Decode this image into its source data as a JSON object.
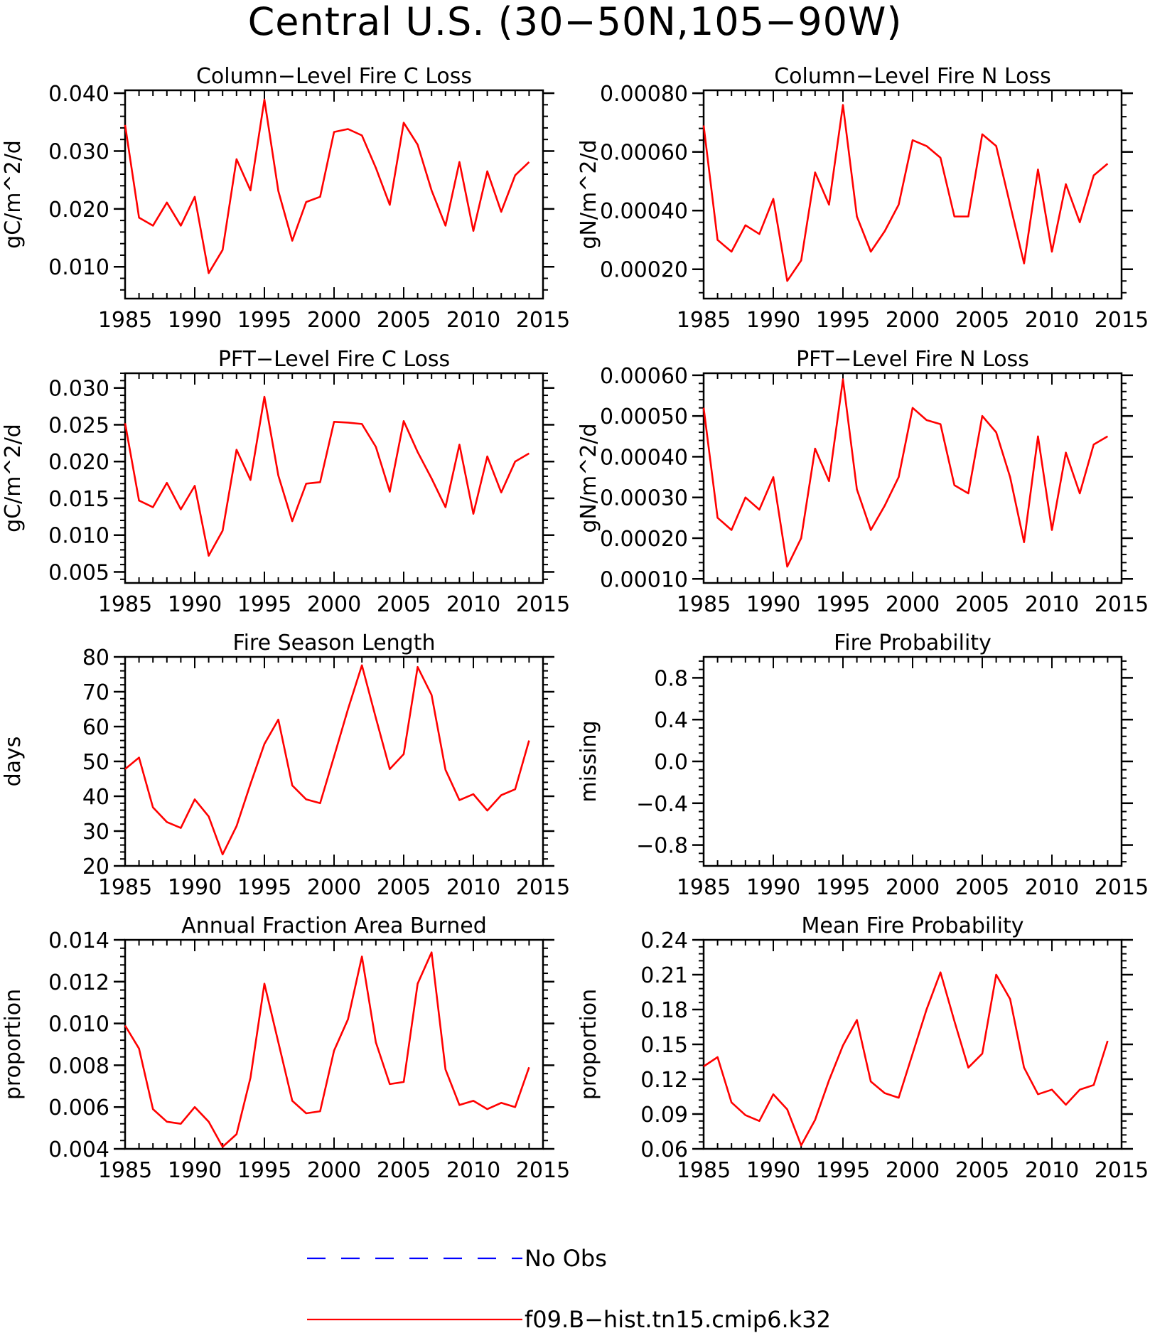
{
  "title": "Central U.S. (30−50N,105−90W)",
  "colors": {
    "model": "#ff0000",
    "obs": "#0000ff",
    "axes": "#000000"
  },
  "legend": {
    "entries": [
      {
        "label": "No Obs",
        "style": "dashed",
        "color": "#0000ff"
      },
      {
        "label": "f09.B−hist.tn15.cmip6.k32",
        "style": "solid",
        "color": "#ff0000"
      }
    ]
  },
  "chart_data": [
    {
      "type": "line",
      "title": "Column−Level Fire C Loss",
      "ylabel": "gC/m^2/d",
      "xlim": [
        1985,
        2015
      ],
      "ylim": [
        0.0045,
        0.0405
      ],
      "xticks": [
        1985,
        1990,
        1995,
        2000,
        2005,
        2010,
        2015
      ],
      "xticklabels": [
        "1985",
        "1990",
        "1995",
        "2000",
        "2005",
        "2010",
        "2015"
      ],
      "yticks": [
        0.01,
        0.02,
        0.03,
        0.04
      ],
      "yticklabels": [
        "0.010",
        "0.020",
        "0.030",
        "0.040"
      ],
      "x": [
        1985,
        1986,
        1987,
        1988,
        1989,
        1990,
        1991,
        1992,
        1993,
        1994,
        1995,
        1996,
        1997,
        1998,
        1999,
        2000,
        2001,
        2002,
        2003,
        2004,
        2005,
        2006,
        2007,
        2008,
        2009,
        2010,
        2011,
        2012,
        2013,
        2014
      ],
      "series": [
        {
          "values": [
            0.0345,
            0.0185,
            0.0171,
            0.0211,
            0.0171,
            0.0221,
            0.0089,
            0.0129,
            0.0286,
            0.0232,
            0.0389,
            0.0231,
            0.0145,
            0.0212,
            0.0221,
            0.0333,
            0.0338,
            0.0327,
            0.0271,
            0.0207,
            0.0349,
            0.0311,
            0.0232,
            0.0171,
            0.0281,
            0.0162,
            0.0265,
            0.0195,
            0.0258,
            0.0281
          ]
        }
      ]
    },
    {
      "type": "line",
      "title": "Column−Level Fire N Loss",
      "ylabel": "gN/m^2/d",
      "xlim": [
        1985,
        2015
      ],
      "ylim": [
        0.0001,
        0.00081
      ],
      "xticks": [
        1985,
        1990,
        1995,
        2000,
        2005,
        2010,
        2015
      ],
      "xticklabels": [
        "1985",
        "1990",
        "1995",
        "2000",
        "2005",
        "2010",
        "2015"
      ],
      "yticks": [
        0.0002,
        0.0004,
        0.0006,
        0.0008
      ],
      "yticklabels": [
        "0.00020",
        "0.00040",
        "0.00060",
        "0.00080"
      ],
      "x": [
        1985,
        1986,
        1987,
        1988,
        1989,
        1990,
        1991,
        1992,
        1993,
        1994,
        1995,
        1996,
        1997,
        1998,
        1999,
        2000,
        2001,
        2002,
        2003,
        2004,
        2005,
        2006,
        2007,
        2008,
        2009,
        2010,
        2011,
        2012,
        2013,
        2014
      ],
      "series": [
        {
          "values": [
            0.00069,
            0.0003,
            0.00026,
            0.00035,
            0.00032,
            0.00044,
            0.00016,
            0.00023,
            0.00053,
            0.00042,
            0.00076,
            0.00038,
            0.00026,
            0.00033,
            0.00042,
            0.00064,
            0.00062,
            0.00058,
            0.00038,
            0.00038,
            0.00066,
            0.00062,
            0.00042,
            0.00022,
            0.00054,
            0.00026,
            0.00049,
            0.00036,
            0.00052,
            0.00056
          ]
        }
      ]
    },
    {
      "type": "line",
      "title": "PFT−Level Fire C Loss",
      "ylabel": "gC/m^2/d",
      "xlim": [
        1985,
        2015
      ],
      "ylim": [
        0.0035,
        0.032
      ],
      "xticks": [
        1985,
        1990,
        1995,
        2000,
        2005,
        2010,
        2015
      ],
      "xticklabels": [
        "1985",
        "1990",
        "1995",
        "2000",
        "2005",
        "2010",
        "2015"
      ],
      "yticks": [
        0.005,
        0.01,
        0.015,
        0.02,
        0.025,
        0.03
      ],
      "yticklabels": [
        "0.005",
        "0.010",
        "0.015",
        "0.020",
        "0.025",
        "0.030"
      ],
      "x": [
        1985,
        1986,
        1987,
        1988,
        1989,
        1990,
        1991,
        1992,
        1993,
        1994,
        1995,
        1996,
        1997,
        1998,
        1999,
        2000,
        2001,
        2002,
        2003,
        2004,
        2005,
        2006,
        2007,
        2008,
        2009,
        2010,
        2011,
        2012,
        2013,
        2014
      ],
      "series": [
        {
          "values": [
            0.0252,
            0.0147,
            0.0138,
            0.0171,
            0.0135,
            0.0167,
            0.0072,
            0.0106,
            0.0216,
            0.0175,
            0.0288,
            0.0181,
            0.0119,
            0.017,
            0.0172,
            0.0254,
            0.0253,
            0.0251,
            0.022,
            0.0159,
            0.0255,
            0.0213,
            0.0177,
            0.0138,
            0.0223,
            0.0129,
            0.0207,
            0.0158,
            0.02,
            0.0211
          ]
        }
      ]
    },
    {
      "type": "line",
      "title": "PFT−Level Fire N Loss",
      "ylabel": "gN/m^2/d",
      "xlim": [
        1985,
        2015
      ],
      "ylim": [
        9e-05,
        0.000605
      ],
      "xticks": [
        1985,
        1990,
        1995,
        2000,
        2005,
        2010,
        2015
      ],
      "xticklabels": [
        "1985",
        "1990",
        "1995",
        "2000",
        "2005",
        "2010",
        "2015"
      ],
      "yticks": [
        0.0001,
        0.0002,
        0.0003,
        0.0004,
        0.0005,
        0.0006
      ],
      "yticklabels": [
        "0.00010",
        "0.00020",
        "0.00030",
        "0.00040",
        "0.00050",
        "0.00060"
      ],
      "x": [
        1985,
        1986,
        1987,
        1988,
        1989,
        1990,
        1991,
        1992,
        1993,
        1994,
        1995,
        1996,
        1997,
        1998,
        1999,
        2000,
        2001,
        2002,
        2003,
        2004,
        2005,
        2006,
        2007,
        2008,
        2009,
        2010,
        2011,
        2012,
        2013,
        2014
      ],
      "series": [
        {
          "values": [
            0.00052,
            0.00025,
            0.00022,
            0.0003,
            0.00027,
            0.00035,
            0.00013,
            0.0002,
            0.00042,
            0.00034,
            0.00059,
            0.00032,
            0.00022,
            0.00028,
            0.00035,
            0.00052,
            0.00049,
            0.00048,
            0.00033,
            0.00031,
            0.0005,
            0.00046,
            0.00035,
            0.00019,
            0.00045,
            0.00022,
            0.00041,
            0.00031,
            0.00043,
            0.00045
          ]
        }
      ]
    },
    {
      "type": "line",
      "title": "Fire Season Length",
      "ylabel": "days",
      "xlim": [
        1985,
        2015
      ],
      "ylim": [
        20,
        80
      ],
      "xticks": [
        1985,
        1990,
        1995,
        2000,
        2005,
        2010,
        2015
      ],
      "xticklabels": [
        "1985",
        "1990",
        "1995",
        "2000",
        "2005",
        "2010",
        "2015"
      ],
      "yticks": [
        20,
        30,
        40,
        50,
        60,
        70,
        80
      ],
      "yticklabels": [
        "20",
        "30",
        "40",
        "50",
        "60",
        "70",
        "80"
      ],
      "x": [
        1985,
        1986,
        1987,
        1988,
        1989,
        1990,
        1991,
        1992,
        1993,
        1994,
        1995,
        1996,
        1997,
        1998,
        1999,
        2000,
        2001,
        2002,
        2003,
        2004,
        2005,
        2006,
        2007,
        2008,
        2009,
        2010,
        2011,
        2012,
        2013,
        2014
      ],
      "series": [
        {
          "values": [
            47.8,
            51.1,
            36.8,
            32.6,
            30.9,
            39.1,
            34.2,
            23.3,
            31.4,
            43.5,
            55.0,
            62.0,
            43.1,
            39.1,
            38.0,
            51.4,
            65.0,
            77.6,
            62.5,
            47.8,
            52.1,
            77.1,
            69.1,
            47.6,
            38.9,
            40.6,
            35.9,
            40.3,
            42.0,
            56.0
          ]
        }
      ]
    },
    {
      "type": "line",
      "title": "Fire Probability",
      "ylabel": "missing",
      "xlim": [
        1985,
        2015
      ],
      "ylim": [
        -1,
        1
      ],
      "xticks": [
        1985,
        1990,
        1995,
        2000,
        2005,
        2010,
        2015
      ],
      "xticklabels": [
        "1985",
        "1990",
        "1995",
        "2000",
        "2005",
        "2010",
        "2015"
      ],
      "yticks": [
        -0.8,
        -0.4,
        0.0,
        0.4,
        0.8
      ],
      "yticklabels": [
        "−0.8",
        "−0.4",
        "0.0",
        "0.4",
        "0.8"
      ],
      "x": [],
      "series": []
    },
    {
      "type": "line",
      "title": "Annual Fraction Area Burned",
      "ylabel": "proportion",
      "xlim": [
        1985,
        2015
      ],
      "ylim": [
        0.004,
        0.014
      ],
      "xticks": [
        1985,
        1990,
        1995,
        2000,
        2005,
        2010,
        2015
      ],
      "xticklabels": [
        "1985",
        "1990",
        "1995",
        "2000",
        "2005",
        "2010",
        "2015"
      ],
      "yticks": [
        0.004,
        0.006,
        0.008,
        0.01,
        0.012,
        0.014
      ],
      "yticklabels": [
        "0.004",
        "0.006",
        "0.008",
        "0.010",
        "0.012",
        "0.014"
      ],
      "x": [
        1985,
        1986,
        1987,
        1988,
        1989,
        1990,
        1991,
        1992,
        1993,
        1994,
        1995,
        1996,
        1997,
        1998,
        1999,
        2000,
        2001,
        2002,
        2003,
        2004,
        2005,
        2006,
        2007,
        2008,
        2009,
        2010,
        2011,
        2012,
        2013,
        2014
      ],
      "series": [
        {
          "values": [
            0.0099,
            0.0088,
            0.0059,
            0.0053,
            0.0052,
            0.006,
            0.0053,
            0.0041,
            0.0047,
            0.0074,
            0.0119,
            0.0091,
            0.0063,
            0.0057,
            0.0058,
            0.0087,
            0.0102,
            0.0132,
            0.0091,
            0.0071,
            0.0072,
            0.0119,
            0.0134,
            0.0078,
            0.0061,
            0.0063,
            0.0059,
            0.0062,
            0.006,
            0.0079
          ]
        }
      ]
    },
    {
      "type": "line",
      "title": "Mean Fire Probability",
      "ylabel": "proportion",
      "xlim": [
        1985,
        2015
      ],
      "ylim": [
        0.06,
        0.24
      ],
      "xticks": [
        1985,
        1990,
        1995,
        2000,
        2005,
        2010,
        2015
      ],
      "xticklabels": [
        "1985",
        "1990",
        "1995",
        "2000",
        "2005",
        "2010",
        "2015"
      ],
      "yticks": [
        0.06,
        0.09,
        0.12,
        0.15,
        0.18,
        0.21,
        0.24
      ],
      "yticklabels": [
        "0.06",
        "0.09",
        "0.12",
        "0.15",
        "0.18",
        "0.21",
        "0.24"
      ],
      "x": [
        1985,
        1986,
        1987,
        1988,
        1989,
        1990,
        1991,
        1992,
        1993,
        1994,
        1995,
        1996,
        1997,
        1998,
        1999,
        2000,
        2001,
        2002,
        2003,
        2004,
        2005,
        2006,
        2007,
        2008,
        2009,
        2010,
        2011,
        2012,
        2013,
        2014
      ],
      "series": [
        {
          "values": [
            0.131,
            0.139,
            0.1,
            0.089,
            0.084,
            0.107,
            0.094,
            0.063,
            0.085,
            0.119,
            0.149,
            0.171,
            0.118,
            0.108,
            0.104,
            0.142,
            0.18,
            0.212,
            0.17,
            0.13,
            0.142,
            0.21,
            0.189,
            0.13,
            0.107,
            0.111,
            0.098,
            0.111,
            0.115,
            0.153
          ]
        }
      ]
    }
  ]
}
